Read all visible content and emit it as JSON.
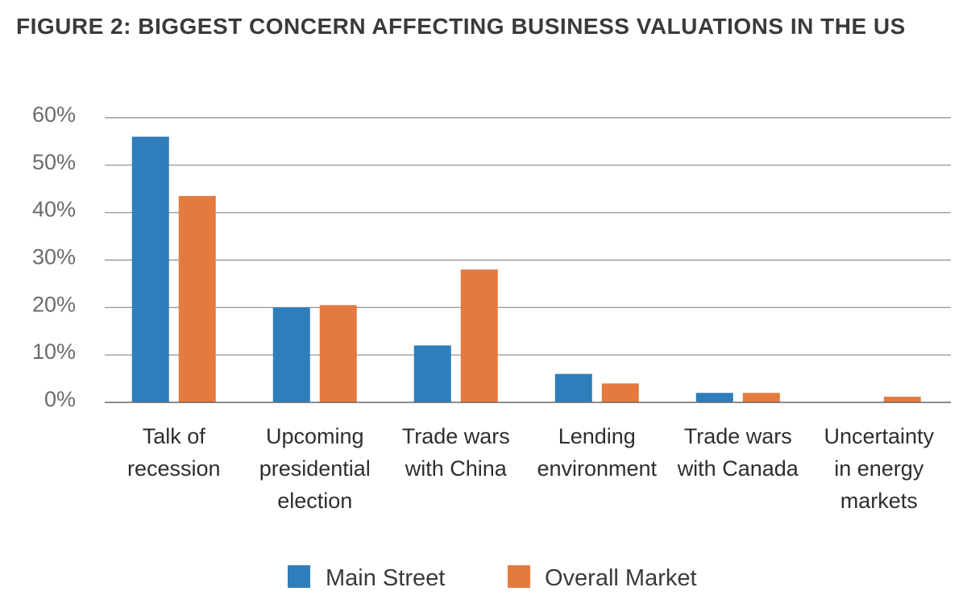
{
  "chart_data": {
    "type": "bar",
    "title": "FIGURE 2: BIGGEST CONCERN AFFECTING BUSINESS VALUATIONS IN THE US",
    "xlabel": "",
    "ylabel": "",
    "ylim": [
      0,
      60
    ],
    "yticks": [
      "0%",
      "10%",
      "20%",
      "30%",
      "40%",
      "50%",
      "60%"
    ],
    "categories": [
      [
        "Talk of",
        "recession"
      ],
      [
        "Upcoming",
        "presidential",
        "election"
      ],
      [
        "Trade wars",
        "with China"
      ],
      [
        "Lending",
        "environment"
      ],
      [
        "Trade wars",
        "with Canada"
      ],
      [
        "Uncertainty",
        "in energy",
        "markets"
      ]
    ],
    "series": [
      {
        "name": "Main Street",
        "color": "#2e7ebc",
        "values": [
          56,
          20,
          12,
          6,
          2,
          0
        ]
      },
      {
        "name": "Overall Market",
        "color": "#e57a3f",
        "values": [
          43.5,
          20.5,
          28,
          4,
          2,
          1.2
        ]
      }
    ],
    "grid": true,
    "legend_position": "bottom"
  }
}
